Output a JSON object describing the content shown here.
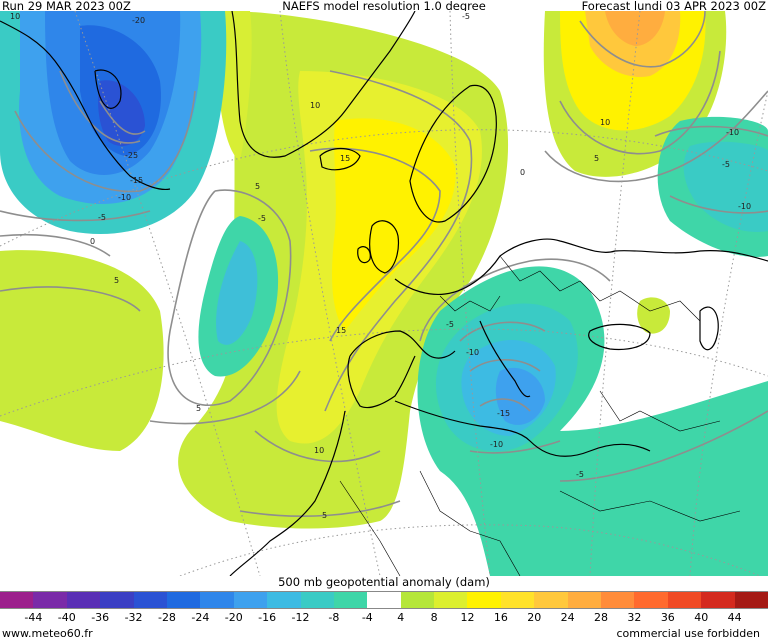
{
  "header": {
    "run": "Run 29 MAR 2023 00Z",
    "model": "NAEFS model resolution 1.0 degree",
    "forecast": "Forecast lundi 03 APR 2023 00Z"
  },
  "legend": {
    "title": "500 mb geopotential anomaly (dam)",
    "ticks": [
      "-44",
      "-40",
      "-36",
      "-32",
      "-28",
      "-24",
      "-20",
      "-16",
      "-12",
      "-8",
      "-4",
      "4",
      "8",
      "12",
      "16",
      "20",
      "24",
      "28",
      "32",
      "36",
      "40",
      "44"
    ],
    "colors": [
      "#9c1f8c",
      "#7a2aa8",
      "#5a2fb5",
      "#3b3fc4",
      "#2a52d4",
      "#1f6ae0",
      "#2f86ea",
      "#3ea1ee",
      "#3dbbe3",
      "#3acbc5",
      "#3fd6a8",
      "#ffffff",
      "#b5e63a",
      "#dcef2f",
      "#fff200",
      "#ffe22a",
      "#ffc83c",
      "#ffad3f",
      "#ff8c3a",
      "#ff6a2e",
      "#f04a24",
      "#d42a1e",
      "#a51a15"
    ]
  },
  "contour_labels": [
    "-20",
    "-25",
    "-15",
    "-10",
    "-5",
    "0",
    "5",
    "10",
    "15",
    "-5",
    "5",
    "-5",
    "10",
    "15",
    "10",
    "5",
    "5",
    "0",
    "5",
    "10",
    "-10",
    "-5",
    "-10",
    "-5",
    "-10",
    "-15",
    "-10",
    "-5",
    "-5"
  ],
  "footer": {
    "site": "www.meteo60.fr",
    "notice": "commercial use forbidden"
  }
}
